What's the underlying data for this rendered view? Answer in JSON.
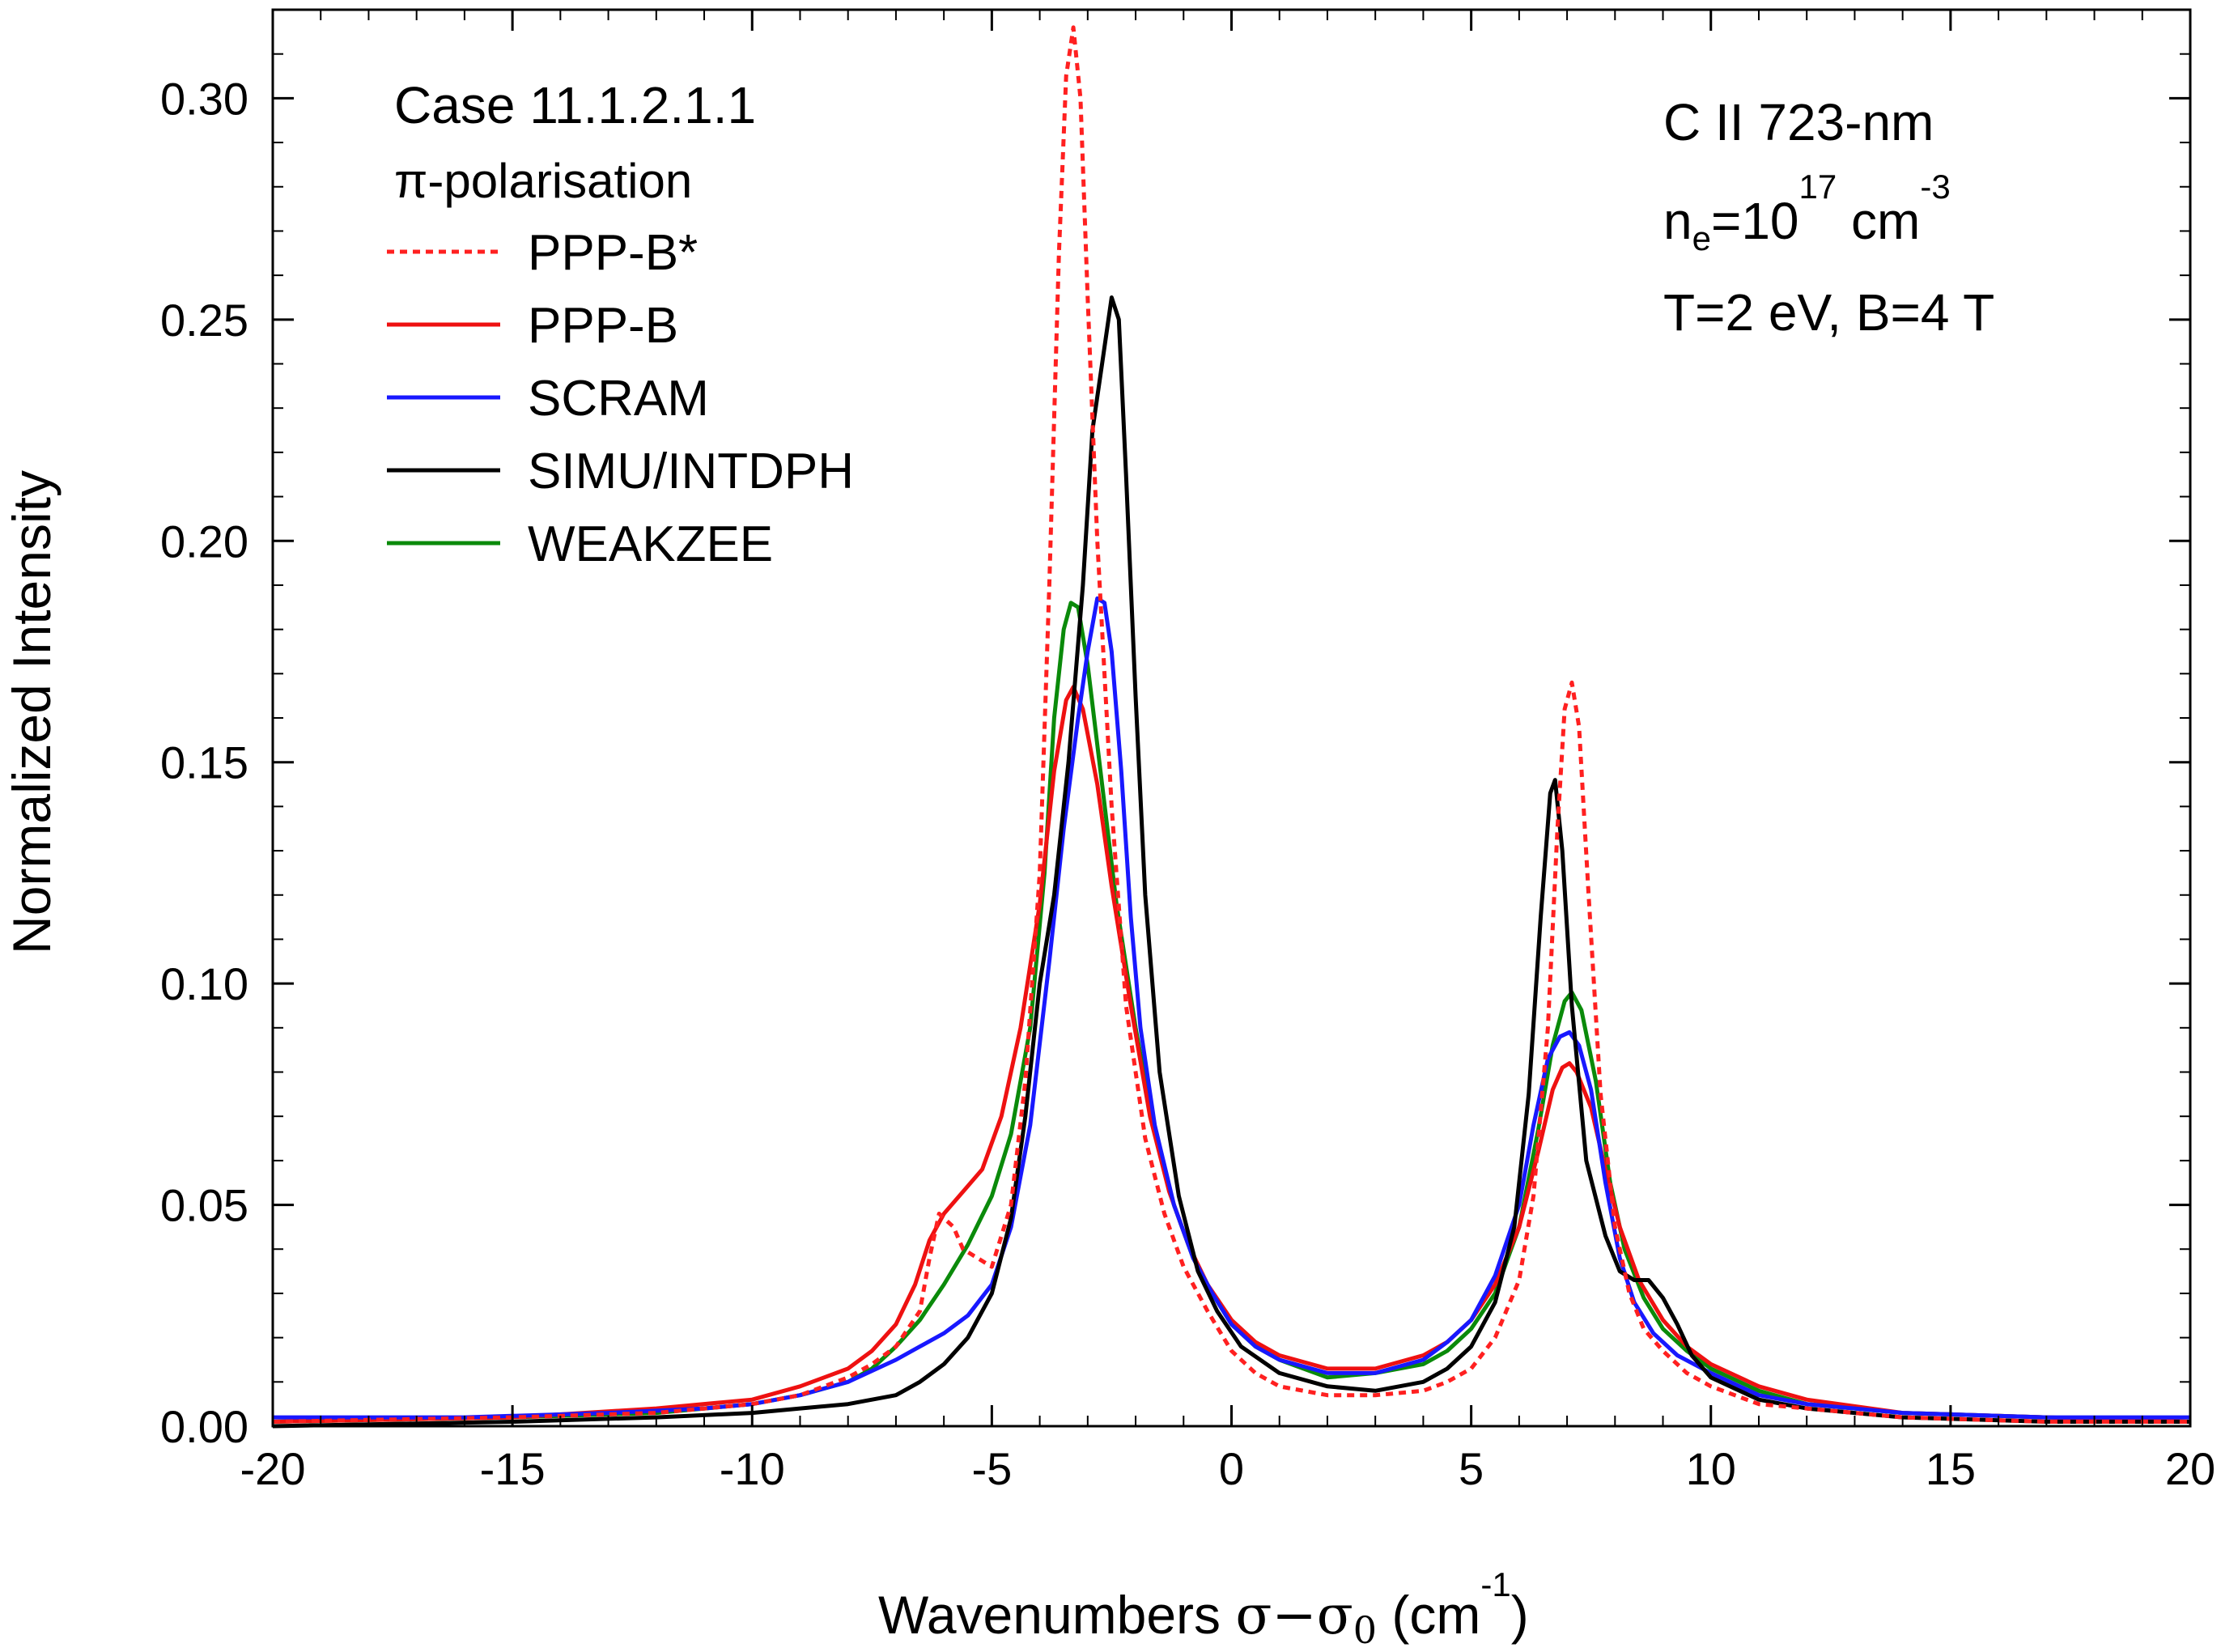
{
  "chart_data": {
    "type": "line",
    "title": "",
    "xlabel": {
      "text": "Wavenumbers ",
      "sym": "σ−σ",
      "sub": "0",
      "unit": " (cm",
      "sup": "-1",
      "close": ")"
    },
    "ylabel": "Normalized Intensity",
    "xlim": [
      -20,
      20
    ],
    "ylim": [
      0,
      0.32
    ],
    "xticks": [
      -20,
      -15,
      -10,
      -5,
      0,
      5,
      10,
      15,
      20
    ],
    "xtick_labels": [
      "-20",
      "-15",
      "-10",
      "-5",
      "0",
      "5",
      "10",
      "15",
      "20"
    ],
    "yticks": [
      0,
      0.05,
      0.1,
      0.15,
      0.2,
      0.25,
      0.3
    ],
    "ytick_labels": [
      "0.00",
      "0.05",
      "0.10",
      "0.15",
      "0.20",
      "0.25",
      "0.30"
    ],
    "grid": false,
    "legend_position": "top-left",
    "legend_title": "Case 11.1.2.1.1",
    "legend_subtitle": "π-polarisation",
    "annotations": {
      "line1": "C II 723-nm",
      "ne_prefix": "n",
      "ne_sub": "e",
      "ne_mid": "=10",
      "ne_exp": "17",
      "ne_unit": " cm",
      "ne_unit_exp": "-3",
      "line3": "T=2 eV, B=4 T"
    },
    "series": [
      {
        "name": "PPP-B*",
        "color": "#ff2020",
        "dash": "dotted",
        "points": [
          [
            -20,
            0.001
          ],
          [
            -15,
            0.002
          ],
          [
            -12,
            0.003
          ],
          [
            -10,
            0.005
          ],
          [
            -9,
            0.007
          ],
          [
            -8,
            0.011
          ],
          [
            -7.5,
            0.014
          ],
          [
            -7,
            0.018
          ],
          [
            -6.5,
            0.026
          ],
          [
            -6.3,
            0.038
          ],
          [
            -6.1,
            0.048
          ],
          [
            -5.8,
            0.045
          ],
          [
            -5.6,
            0.04
          ],
          [
            -5.3,
            0.038
          ],
          [
            -5.0,
            0.036
          ],
          [
            -4.6,
            0.05
          ],
          [
            -4.3,
            0.078
          ],
          [
            -4.0,
            0.125
          ],
          [
            -3.8,
            0.19
          ],
          [
            -3.6,
            0.265
          ],
          [
            -3.45,
            0.305
          ],
          [
            -3.3,
            0.316
          ],
          [
            -3.15,
            0.3
          ],
          [
            -3.0,
            0.255
          ],
          [
            -2.8,
            0.2
          ],
          [
            -2.5,
            0.14
          ],
          [
            -2.2,
            0.095
          ],
          [
            -1.8,
            0.065
          ],
          [
            -1.4,
            0.048
          ],
          [
            -1.0,
            0.036
          ],
          [
            -0.5,
            0.026
          ],
          [
            0,
            0.017
          ],
          [
            0.5,
            0.012
          ],
          [
            1,
            0.009
          ],
          [
            2,
            0.007
          ],
          [
            3,
            0.007
          ],
          [
            4,
            0.008
          ],
          [
            4.5,
            0.01
          ],
          [
            5,
            0.013
          ],
          [
            5.5,
            0.02
          ],
          [
            6.0,
            0.033
          ],
          [
            6.3,
            0.052
          ],
          [
            6.6,
            0.09
          ],
          [
            6.8,
            0.135
          ],
          [
            6.95,
            0.162
          ],
          [
            7.1,
            0.168
          ],
          [
            7.25,
            0.158
          ],
          [
            7.45,
            0.12
          ],
          [
            7.7,
            0.075
          ],
          [
            8.0,
            0.045
          ],
          [
            8.3,
            0.03
          ],
          [
            8.6,
            0.022
          ],
          [
            9.0,
            0.017
          ],
          [
            9.5,
            0.012
          ],
          [
            10,
            0.009
          ],
          [
            11,
            0.005
          ],
          [
            12,
            0.004
          ],
          [
            14,
            0.002
          ],
          [
            17,
            0.001
          ],
          [
            20,
            0.001
          ]
        ]
      },
      {
        "name": "PPP-B",
        "color": "#ee1111",
        "dash": "solid",
        "points": [
          [
            -20,
            0.001
          ],
          [
            -15,
            0.002
          ],
          [
            -12,
            0.004
          ],
          [
            -10,
            0.006
          ],
          [
            -9,
            0.009
          ],
          [
            -8,
            0.013
          ],
          [
            -7.5,
            0.017
          ],
          [
            -7,
            0.023
          ],
          [
            -6.6,
            0.032
          ],
          [
            -6.3,
            0.042
          ],
          [
            -6.0,
            0.048
          ],
          [
            -5.6,
            0.053
          ],
          [
            -5.2,
            0.058
          ],
          [
            -4.8,
            0.07
          ],
          [
            -4.4,
            0.09
          ],
          [
            -4.0,
            0.118
          ],
          [
            -3.7,
            0.148
          ],
          [
            -3.45,
            0.164
          ],
          [
            -3.3,
            0.167
          ],
          [
            -3.1,
            0.162
          ],
          [
            -2.8,
            0.145
          ],
          [
            -2.5,
            0.122
          ],
          [
            -2.1,
            0.095
          ],
          [
            -1.7,
            0.07
          ],
          [
            -1.3,
            0.053
          ],
          [
            -0.9,
            0.041
          ],
          [
            -0.5,
            0.032
          ],
          [
            0,
            0.024
          ],
          [
            0.5,
            0.019
          ],
          [
            1,
            0.016
          ],
          [
            2,
            0.013
          ],
          [
            3,
            0.013
          ],
          [
            4,
            0.016
          ],
          [
            4.5,
            0.019
          ],
          [
            5,
            0.024
          ],
          [
            5.5,
            0.032
          ],
          [
            6.0,
            0.045
          ],
          [
            6.4,
            0.062
          ],
          [
            6.7,
            0.076
          ],
          [
            6.9,
            0.081
          ],
          [
            7.05,
            0.082
          ],
          [
            7.2,
            0.08
          ],
          [
            7.5,
            0.072
          ],
          [
            7.8,
            0.058
          ],
          [
            8.1,
            0.045
          ],
          [
            8.5,
            0.033
          ],
          [
            9.0,
            0.024
          ],
          [
            9.5,
            0.018
          ],
          [
            10,
            0.014
          ],
          [
            11,
            0.009
          ],
          [
            12,
            0.006
          ],
          [
            14,
            0.003
          ],
          [
            17,
            0.002
          ],
          [
            20,
            0.001
          ]
        ]
      },
      {
        "name": "SCRAM",
        "color": "#1818ff",
        "dash": "solid",
        "points": [
          [
            -20,
            0.002
          ],
          [
            -16,
            0.002
          ],
          [
            -13,
            0.003
          ],
          [
            -11,
            0.004
          ],
          [
            -10,
            0.005
          ],
          [
            -9,
            0.007
          ],
          [
            -8,
            0.01
          ],
          [
            -7,
            0.015
          ],
          [
            -6.5,
            0.018
          ],
          [
            -6,
            0.021
          ],
          [
            -5.5,
            0.025
          ],
          [
            -5,
            0.032
          ],
          [
            -4.6,
            0.045
          ],
          [
            -4.2,
            0.068
          ],
          [
            -3.8,
            0.105
          ],
          [
            -3.5,
            0.135
          ],
          [
            -3.2,
            0.16
          ],
          [
            -3.0,
            0.175
          ],
          [
            -2.8,
            0.187
          ],
          [
            -2.65,
            0.186
          ],
          [
            -2.5,
            0.175
          ],
          [
            -2.3,
            0.148
          ],
          [
            -2.1,
            0.115
          ],
          [
            -1.9,
            0.09
          ],
          [
            -1.6,
            0.068
          ],
          [
            -1.2,
            0.05
          ],
          [
            -0.8,
            0.038
          ],
          [
            -0.4,
            0.03
          ],
          [
            0,
            0.023
          ],
          [
            0.5,
            0.018
          ],
          [
            1,
            0.015
          ],
          [
            2,
            0.012
          ],
          [
            3,
            0.012
          ],
          [
            4,
            0.015
          ],
          [
            4.5,
            0.019
          ],
          [
            5,
            0.024
          ],
          [
            5.5,
            0.034
          ],
          [
            6.0,
            0.05
          ],
          [
            6.3,
            0.068
          ],
          [
            6.6,
            0.083
          ],
          [
            6.85,
            0.088
          ],
          [
            7.05,
            0.089
          ],
          [
            7.25,
            0.086
          ],
          [
            7.5,
            0.076
          ],
          [
            7.8,
            0.055
          ],
          [
            8.1,
            0.038
          ],
          [
            8.4,
            0.028
          ],
          [
            8.8,
            0.021
          ],
          [
            9.3,
            0.016
          ],
          [
            10,
            0.012
          ],
          [
            11,
            0.007
          ],
          [
            12,
            0.005
          ],
          [
            14,
            0.003
          ],
          [
            17,
            0.002
          ],
          [
            20,
            0.002
          ]
        ]
      },
      {
        "name": "SIMU/INTDPH",
        "color": "#000000",
        "dash": "solid",
        "points": [
          [
            -20,
            0.0
          ],
          [
            -15,
            0.001
          ],
          [
            -12,
            0.002
          ],
          [
            -10,
            0.003
          ],
          [
            -9,
            0.004
          ],
          [
            -8,
            0.005
          ],
          [
            -7,
            0.007
          ],
          [
            -6.5,
            0.01
          ],
          [
            -6,
            0.014
          ],
          [
            -5.5,
            0.02
          ],
          [
            -5.0,
            0.03
          ],
          [
            -4.6,
            0.047
          ],
          [
            -4.3,
            0.07
          ],
          [
            -4.0,
            0.1
          ],
          [
            -3.7,
            0.12
          ],
          [
            -3.4,
            0.15
          ],
          [
            -3.1,
            0.19
          ],
          [
            -2.9,
            0.225
          ],
          [
            -2.7,
            0.24
          ],
          [
            -2.5,
            0.255
          ],
          [
            -2.35,
            0.25
          ],
          [
            -2.2,
            0.215
          ],
          [
            -2.0,
            0.165
          ],
          [
            -1.8,
            0.12
          ],
          [
            -1.5,
            0.08
          ],
          [
            -1.1,
            0.052
          ],
          [
            -0.7,
            0.035
          ],
          [
            -0.3,
            0.026
          ],
          [
            0.2,
            0.018
          ],
          [
            1,
            0.012
          ],
          [
            2,
            0.009
          ],
          [
            3,
            0.008
          ],
          [
            4,
            0.01
          ],
          [
            4.5,
            0.013
          ],
          [
            5,
            0.018
          ],
          [
            5.5,
            0.028
          ],
          [
            5.9,
            0.045
          ],
          [
            6.2,
            0.075
          ],
          [
            6.45,
            0.115
          ],
          [
            6.65,
            0.143
          ],
          [
            6.75,
            0.146
          ],
          [
            6.9,
            0.13
          ],
          [
            7.1,
            0.095
          ],
          [
            7.4,
            0.06
          ],
          [
            7.8,
            0.043
          ],
          [
            8.1,
            0.035
          ],
          [
            8.4,
            0.033
          ],
          [
            8.7,
            0.033
          ],
          [
            9.0,
            0.029
          ],
          [
            9.3,
            0.023
          ],
          [
            9.6,
            0.016
          ],
          [
            10,
            0.011
          ],
          [
            11,
            0.006
          ],
          [
            12,
            0.004
          ],
          [
            14,
            0.002
          ],
          [
            17,
            0.001
          ],
          [
            20,
            0.001
          ]
        ]
      },
      {
        "name": "WEAKZEE",
        "color": "#0a8a0a",
        "dash": "solid",
        "points": [
          [
            -20,
            0.001
          ],
          [
            -15,
            0.002
          ],
          [
            -12,
            0.003
          ],
          [
            -10,
            0.005
          ],
          [
            -9,
            0.007
          ],
          [
            -8,
            0.01
          ],
          [
            -7.5,
            0.013
          ],
          [
            -7,
            0.018
          ],
          [
            -6.5,
            0.024
          ],
          [
            -6,
            0.032
          ],
          [
            -5.5,
            0.041
          ],
          [
            -5.0,
            0.052
          ],
          [
            -4.6,
            0.066
          ],
          [
            -4.2,
            0.09
          ],
          [
            -3.9,
            0.125
          ],
          [
            -3.7,
            0.16
          ],
          [
            -3.5,
            0.18
          ],
          [
            -3.35,
            0.186
          ],
          [
            -3.2,
            0.185
          ],
          [
            -3.0,
            0.172
          ],
          [
            -2.7,
            0.145
          ],
          [
            -2.4,
            0.118
          ],
          [
            -2.0,
            0.09
          ],
          [
            -1.6,
            0.066
          ],
          [
            -1.2,
            0.05
          ],
          [
            -0.8,
            0.038
          ],
          [
            -0.4,
            0.03
          ],
          [
            0,
            0.023
          ],
          [
            0.5,
            0.018
          ],
          [
            1,
            0.015
          ],
          [
            2,
            0.011
          ],
          [
            3,
            0.012
          ],
          [
            4,
            0.014
          ],
          [
            4.5,
            0.017
          ],
          [
            5,
            0.022
          ],
          [
            5.5,
            0.03
          ],
          [
            6.0,
            0.045
          ],
          [
            6.4,
            0.067
          ],
          [
            6.7,
            0.086
          ],
          [
            6.95,
            0.096
          ],
          [
            7.1,
            0.098
          ],
          [
            7.3,
            0.094
          ],
          [
            7.6,
            0.078
          ],
          [
            7.9,
            0.055
          ],
          [
            8.2,
            0.04
          ],
          [
            8.6,
            0.029
          ],
          [
            9.0,
            0.022
          ],
          [
            9.5,
            0.017
          ],
          [
            10,
            0.013
          ],
          [
            11,
            0.008
          ],
          [
            12,
            0.005
          ],
          [
            14,
            0.003
          ],
          [
            17,
            0.002
          ],
          [
            20,
            0.001
          ]
        ]
      }
    ]
  }
}
